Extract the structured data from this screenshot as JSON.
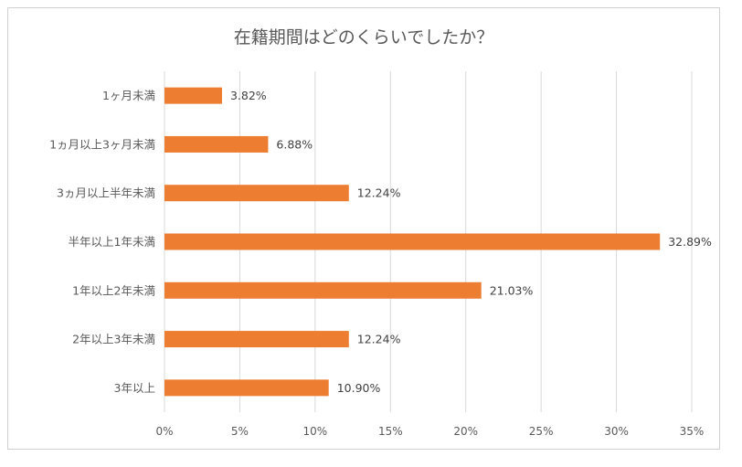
{
  "chart_data": {
    "type": "bar",
    "orientation": "horizontal",
    "title": "在籍期間はどのくらいでしたか？",
    "categories": [
      "1ヶ月未満",
      "1ヵ月以上3ヶ月未満",
      "3ヵ月以上半年未満",
      "半年以上1年未満",
      "1年以上2年未満",
      "2年以上3年未満",
      "3年以上"
    ],
    "values": [
      3.82,
      6.88,
      12.24,
      32.89,
      21.03,
      12.24,
      10.9
    ],
    "data_labels": [
      "3.82%",
      "6.88%",
      "12.24%",
      "32.89%",
      "21.03%",
      "12.24%",
      "10.90%"
    ],
    "xlim": [
      0,
      35
    ],
    "xticks": [
      "0%",
      "5%",
      "10%",
      "15%",
      "20%",
      "25%",
      "30%",
      "35%"
    ],
    "xlabel": "",
    "ylabel": "",
    "grid": true,
    "legend": "none",
    "bar_color": "#ED7D31",
    "grid_color": "#D9D9D9"
  }
}
